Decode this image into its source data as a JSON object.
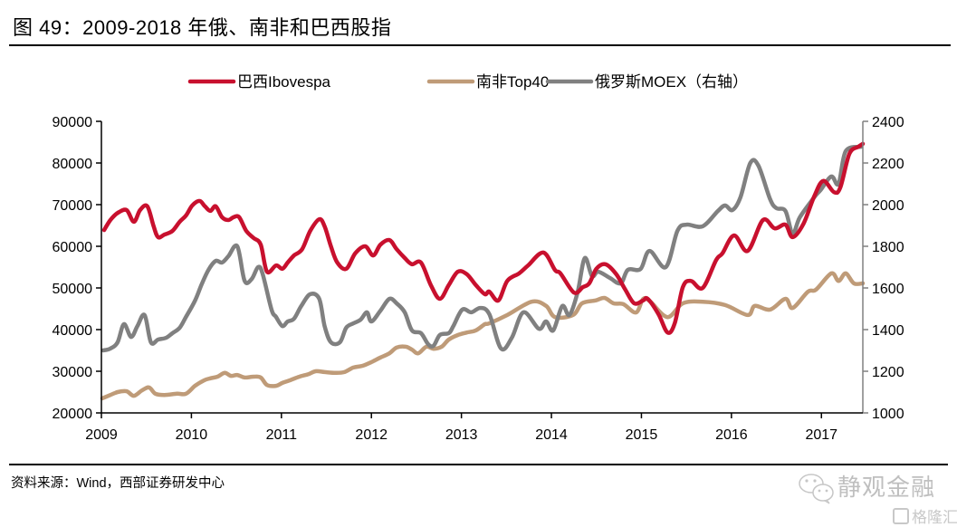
{
  "header": {
    "title": "图 49：2009-2018 年俄、南非和巴西股指"
  },
  "footer": {
    "source": "资料来源：Wind，西部证券研发中心",
    "watermark_main": "静观金融",
    "watermark_sub": "格隆汇",
    "watermark_icon": "wechat-icon"
  },
  "chart_data": {
    "type": "line",
    "title": "图 49：2009-2018 年俄、南非和巴西股指",
    "xlabel": "",
    "ylabel": "",
    "y2label": "右轴",
    "xlim": [
      2009,
      2017.46
    ],
    "ylim": [
      20000,
      90000
    ],
    "y2lim": [
      1000,
      2400
    ],
    "x_ticks": [
      2009,
      2010,
      2011,
      2012,
      2013,
      2014,
      2015,
      2016,
      2017
    ],
    "x_tick_labels": [
      "2009",
      "2010",
      "2011",
      "2012",
      "2013",
      "2014",
      "2015",
      "2016",
      "2017"
    ],
    "y_ticks": [
      20000,
      30000,
      40000,
      50000,
      60000,
      70000,
      80000,
      90000
    ],
    "y_tick_labels": [
      "20000",
      "30000",
      "40000",
      "50000",
      "60000",
      "70000",
      "80000",
      "90000"
    ],
    "y2_ticks": [
      1000,
      1200,
      1400,
      1600,
      1800,
      2000,
      2200,
      2400
    ],
    "y2_tick_labels": [
      "1000",
      "1200",
      "1400",
      "1600",
      "1800",
      "2000",
      "2200",
      "2400"
    ],
    "grid": false,
    "legend_position": "top-center",
    "series": [
      {
        "name": "巴西Ibovespa",
        "axis": "left",
        "color": "#c8102e",
        "x": [
          2009.03,
          2009.1,
          2009.18,
          2009.28,
          2009.36,
          2009.43,
          2009.51,
          2009.58,
          2009.63,
          2009.7,
          2009.79,
          2009.87,
          2009.94,
          2010.01,
          2010.09,
          2010.15,
          2010.21,
          2010.27,
          2010.34,
          2010.41,
          2010.47,
          2010.53,
          2010.61,
          2010.69,
          2010.77,
          2010.84,
          2010.94,
          2011.01,
          2011.07,
          2011.14,
          2011.23,
          2011.32,
          2011.42,
          2011.48,
          2011.55,
          2011.62,
          2011.72,
          2011.82,
          2011.93,
          2012.02,
          2012.1,
          2012.2,
          2012.28,
          2012.37,
          2012.45,
          2012.55,
          2012.66,
          2012.76,
          2012.86,
          2012.96,
          2013.06,
          2013.16,
          2013.26,
          2013.31,
          2013.41,
          2013.51,
          2013.64,
          2013.74,
          2013.91,
          2014.04,
          2014.1,
          2014.25,
          2014.35,
          2014.42,
          2014.5,
          2014.6,
          2014.72,
          2014.82,
          2014.92,
          2015.02,
          2015.07,
          2015.19,
          2015.29,
          2015.37,
          2015.46,
          2015.55,
          2015.68,
          2015.83,
          2015.9,
          2016.03,
          2016.18,
          2016.35,
          2016.48,
          2016.6,
          2016.68,
          2016.8,
          2016.92,
          2017.02,
          2017.14,
          2017.21,
          2017.31,
          2017.41,
          2017.46
        ],
        "values": [
          63900,
          66300,
          68000,
          68700,
          65900,
          68700,
          69600,
          64800,
          62200,
          62800,
          63700,
          65900,
          67400,
          69800,
          70900,
          69600,
          68500,
          69600,
          67000,
          66300,
          67000,
          67000,
          63700,
          62000,
          60400,
          53900,
          55400,
          54600,
          56100,
          57800,
          59300,
          63700,
          66500,
          64800,
          60000,
          56100,
          54600,
          58300,
          60000,
          57800,
          60400,
          61500,
          59300,
          57200,
          55700,
          56100,
          50700,
          47400,
          50700,
          53900,
          53300,
          50700,
          48500,
          49100,
          47000,
          51700,
          53500,
          55400,
          58500,
          54300,
          53500,
          48900,
          50200,
          51100,
          54600,
          55700,
          53300,
          49600,
          46300,
          47000,
          47400,
          43700,
          39300,
          41500,
          50200,
          51700,
          50000,
          56700,
          58300,
          62600,
          58900,
          66300,
          64300,
          65200,
          62200,
          65400,
          72000,
          75700,
          73000,
          74100,
          82200,
          83900,
          84600
        ]
      },
      {
        "name": "南非Top40",
        "axis": "left",
        "color": "#bf9b78",
        "x": [
          2009.01,
          2009.1,
          2009.18,
          2009.28,
          2009.36,
          2009.45,
          2009.53,
          2009.6,
          2009.7,
          2009.84,
          2009.94,
          2010.04,
          2010.14,
          2010.21,
          2010.29,
          2010.37,
          2010.44,
          2010.51,
          2010.59,
          2010.69,
          2010.77,
          2010.84,
          2010.94,
          2011.01,
          2011.09,
          2011.2,
          2011.3,
          2011.38,
          2011.48,
          2011.6,
          2011.7,
          2011.8,
          2011.9,
          2012.0,
          2012.1,
          2012.2,
          2012.28,
          2012.38,
          2012.45,
          2012.52,
          2012.61,
          2012.69,
          2012.78,
          2012.86,
          2012.96,
          2013.06,
          2013.16,
          2013.26,
          2013.31,
          2013.51,
          2013.78,
          2013.94,
          2014.04,
          2014.24,
          2014.34,
          2014.49,
          2014.59,
          2014.69,
          2014.8,
          2014.94,
          2015.02,
          2015.1,
          2015.29,
          2015.46,
          2015.68,
          2015.93,
          2016.18,
          2016.26,
          2016.43,
          2016.6,
          2016.68,
          2016.85,
          2016.94,
          2017.11,
          2017.19,
          2017.27,
          2017.36,
          2017.46
        ],
        "values": [
          23500,
          24300,
          25000,
          25200,
          24100,
          25400,
          26100,
          24600,
          24300,
          24600,
          24600,
          26500,
          27800,
          28300,
          28700,
          29600,
          28900,
          29100,
          28500,
          28700,
          28500,
          26700,
          26500,
          27200,
          27800,
          28700,
          29300,
          30000,
          29800,
          29600,
          29800,
          30900,
          31300,
          32200,
          33300,
          34300,
          35700,
          35900,
          35200,
          34300,
          35900,
          35400,
          35900,
          37600,
          38700,
          39300,
          39800,
          41300,
          41500,
          43500,
          46700,
          45700,
          43000,
          43500,
          46300,
          47000,
          47600,
          46300,
          46100,
          44100,
          47400,
          46700,
          43000,
          46300,
          46700,
          45900,
          43500,
          45700,
          44800,
          47400,
          45200,
          49100,
          49600,
          53500,
          51700,
          53500,
          51100,
          51100
        ]
      },
      {
        "name": "俄罗斯MOEX（右轴）",
        "axis": "right",
        "color": "#808080",
        "x": [
          2009.02,
          2009.1,
          2009.18,
          2009.25,
          2009.33,
          2009.4,
          2009.48,
          2009.55,
          2009.63,
          2009.72,
          2009.79,
          2009.87,
          2009.94,
          2010.04,
          2010.11,
          2010.19,
          2010.27,
          2010.34,
          2010.41,
          2010.51,
          2010.59,
          2010.67,
          2010.74,
          2010.79,
          2010.89,
          2010.94,
          2011.01,
          2011.07,
          2011.14,
          2011.22,
          2011.32,
          2011.42,
          2011.48,
          2011.55,
          2011.65,
          2011.72,
          2011.8,
          2011.88,
          2011.95,
          2012.0,
          2012.1,
          2012.2,
          2012.28,
          2012.37,
          2012.45,
          2012.55,
          2012.63,
          2012.69,
          2012.76,
          2012.86,
          2012.91,
          2013.01,
          2013.11,
          2013.21,
          2013.31,
          2013.44,
          2013.56,
          2013.69,
          2013.86,
          2013.94,
          2014.02,
          2014.12,
          2014.2,
          2014.29,
          2014.37,
          2014.45,
          2014.52,
          2014.65,
          2014.77,
          2014.85,
          2014.99,
          2015.09,
          2015.27,
          2015.4,
          2015.5,
          2015.68,
          2015.85,
          2015.93,
          2016.01,
          2016.1,
          2016.21,
          2016.3,
          2016.43,
          2016.5,
          2016.6,
          2016.68,
          2016.76,
          2016.92,
          2016.99,
          2017.11,
          2017.19,
          2017.27,
          2017.44
        ],
        "values": [
          1300,
          1309,
          1339,
          1426,
          1365,
          1417,
          1470,
          1339,
          1352,
          1361,
          1383,
          1409,
          1461,
          1539,
          1613,
          1687,
          1730,
          1722,
          1752,
          1800,
          1635,
          1643,
          1700,
          1670,
          1496,
          1461,
          1417,
          1439,
          1452,
          1513,
          1570,
          1548,
          1417,
          1339,
          1339,
          1409,
          1430,
          1448,
          1483,
          1439,
          1491,
          1548,
          1526,
          1483,
          1396,
          1383,
          1330,
          1322,
          1374,
          1383,
          1417,
          1496,
          1483,
          1504,
          1474,
          1309,
          1361,
          1483,
          1404,
          1439,
          1396,
          1513,
          1470,
          1578,
          1743,
          1657,
          1678,
          1648,
          1622,
          1687,
          1691,
          1778,
          1700,
          1874,
          1904,
          1896,
          1970,
          1996,
          1974,
          2035,
          2200,
          2187,
          2026,
          1983,
          1970,
          1861,
          1939,
          2035,
          2070,
          2135,
          2100,
          2257,
          2278
        ]
      }
    ]
  }
}
